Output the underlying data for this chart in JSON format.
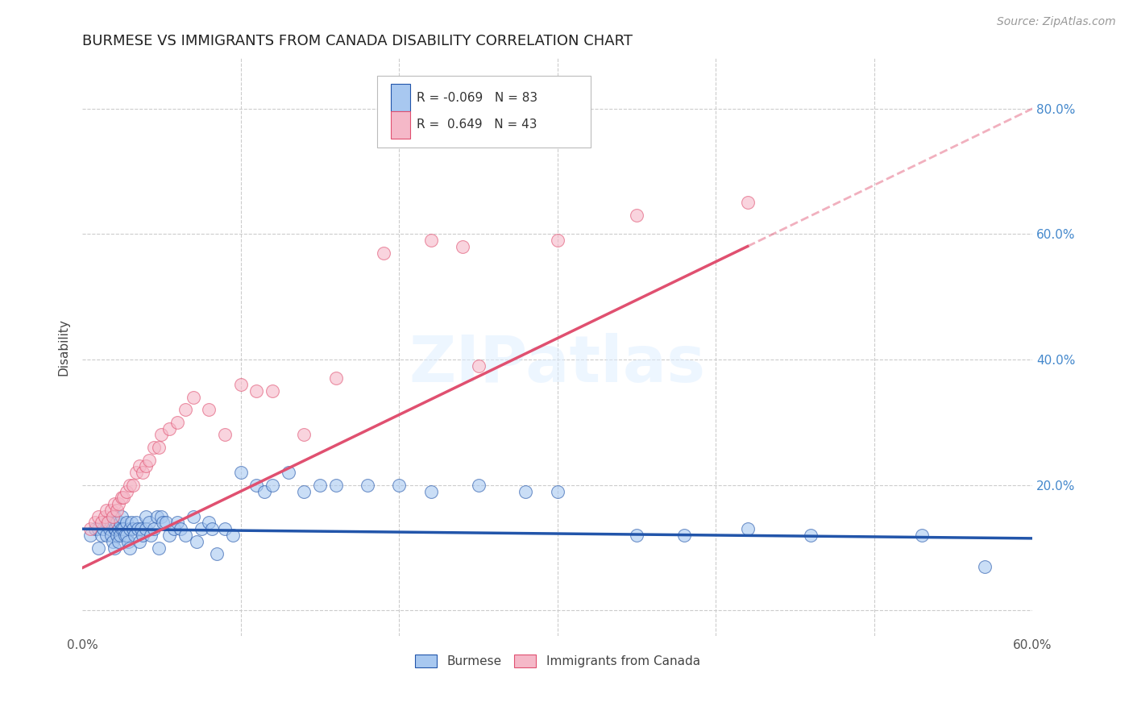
{
  "title": "BURMESE VS IMMIGRANTS FROM CANADA DISABILITY CORRELATION CHART",
  "source": "Source: ZipAtlas.com",
  "ylabel": "Disability",
  "xlim": [
    0.0,
    0.6
  ],
  "ylim": [
    -0.04,
    0.88
  ],
  "blue_R": "-0.069",
  "blue_N": "83",
  "pink_R": "0.649",
  "pink_N": "43",
  "blue_color": "#A8C8F0",
  "pink_color": "#F5B8C8",
  "blue_line_color": "#2255AA",
  "pink_line_color": "#E05070",
  "watermark": "ZIPatlas",
  "blue_line_intercept": 0.13,
  "blue_line_slope": -0.025,
  "pink_line_intercept": 0.068,
  "pink_line_slope": 1.22,
  "pink_line_solid_end": 0.42,
  "blue_scatter_x": [
    0.005,
    0.008,
    0.01,
    0.01,
    0.012,
    0.013,
    0.015,
    0.015,
    0.017,
    0.018,
    0.018,
    0.019,
    0.02,
    0.02,
    0.02,
    0.02,
    0.021,
    0.022,
    0.022,
    0.023,
    0.023,
    0.024,
    0.024,
    0.025,
    0.025,
    0.026,
    0.027,
    0.028,
    0.028,
    0.029,
    0.03,
    0.03,
    0.031,
    0.032,
    0.033,
    0.034,
    0.035,
    0.036,
    0.037,
    0.038,
    0.04,
    0.04,
    0.042,
    0.043,
    0.045,
    0.047,
    0.048,
    0.05,
    0.051,
    0.053,
    0.055,
    0.058,
    0.06,
    0.062,
    0.065,
    0.07,
    0.072,
    0.075,
    0.08,
    0.082,
    0.085,
    0.09,
    0.095,
    0.1,
    0.11,
    0.115,
    0.12,
    0.13,
    0.14,
    0.15,
    0.16,
    0.18,
    0.2,
    0.22,
    0.25,
    0.28,
    0.3,
    0.35,
    0.38,
    0.42,
    0.46,
    0.53,
    0.57
  ],
  "blue_scatter_y": [
    0.12,
    0.13,
    0.13,
    0.1,
    0.12,
    0.13,
    0.14,
    0.12,
    0.13,
    0.14,
    0.12,
    0.11,
    0.15,
    0.14,
    0.13,
    0.1,
    0.13,
    0.14,
    0.12,
    0.13,
    0.11,
    0.14,
    0.12,
    0.15,
    0.13,
    0.13,
    0.12,
    0.14,
    0.12,
    0.11,
    0.13,
    0.1,
    0.14,
    0.13,
    0.12,
    0.14,
    0.13,
    0.11,
    0.13,
    0.12,
    0.15,
    0.13,
    0.14,
    0.12,
    0.13,
    0.15,
    0.1,
    0.15,
    0.14,
    0.14,
    0.12,
    0.13,
    0.14,
    0.13,
    0.12,
    0.15,
    0.11,
    0.13,
    0.14,
    0.13,
    0.09,
    0.13,
    0.12,
    0.22,
    0.2,
    0.19,
    0.2,
    0.22,
    0.19,
    0.2,
    0.2,
    0.2,
    0.2,
    0.19,
    0.2,
    0.19,
    0.19,
    0.12,
    0.12,
    0.13,
    0.12,
    0.12,
    0.07
  ],
  "pink_scatter_x": [
    0.005,
    0.008,
    0.01,
    0.012,
    0.014,
    0.015,
    0.016,
    0.018,
    0.019,
    0.02,
    0.022,
    0.023,
    0.025,
    0.026,
    0.028,
    0.03,
    0.032,
    0.034,
    0.036,
    0.038,
    0.04,
    0.042,
    0.045,
    0.048,
    0.05,
    0.055,
    0.06,
    0.065,
    0.07,
    0.08,
    0.09,
    0.1,
    0.11,
    0.12,
    0.14,
    0.16,
    0.19,
    0.22,
    0.24,
    0.25,
    0.3,
    0.35,
    0.42
  ],
  "pink_scatter_y": [
    0.13,
    0.14,
    0.15,
    0.14,
    0.15,
    0.16,
    0.14,
    0.16,
    0.15,
    0.17,
    0.16,
    0.17,
    0.18,
    0.18,
    0.19,
    0.2,
    0.2,
    0.22,
    0.23,
    0.22,
    0.23,
    0.24,
    0.26,
    0.26,
    0.28,
    0.29,
    0.3,
    0.32,
    0.34,
    0.32,
    0.28,
    0.36,
    0.35,
    0.35,
    0.28,
    0.37,
    0.57,
    0.59,
    0.58,
    0.39,
    0.59,
    0.63,
    0.65
  ]
}
